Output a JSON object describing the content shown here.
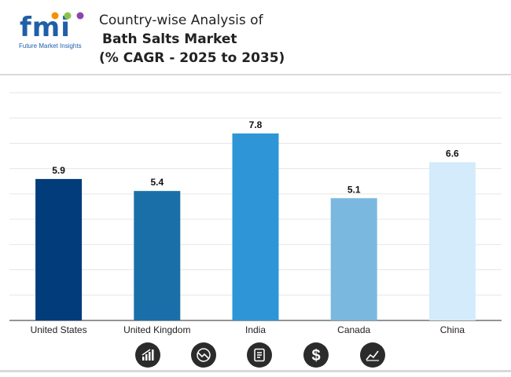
{
  "brand": {
    "logo_text": "fmi",
    "logo_subtext": "Future Market Insights",
    "colors": {
      "blue": "#1f5fa8",
      "orange": "#f39200",
      "green": "#8bc34a",
      "purple": "#8e44ad"
    }
  },
  "header": {
    "title_line1": "Country-wise Analysis of",
    "title_line2": "Bath Salts Market",
    "title_line3": "(% CAGR - 2025 to 2035)"
  },
  "footer": {
    "icons": [
      "growth-chart-icon",
      "decline-chart-icon",
      "report-document-icon",
      "dollar-icon",
      "trend-line-icon"
    ]
  },
  "chart_data": {
    "type": "bar",
    "title": "Country-wise Analysis of Bath Salts Market (% CAGR - 2025 to 2035)",
    "categories": [
      "United States",
      "United Kingdom",
      "India",
      "Canada",
      "China"
    ],
    "values": [
      5.9,
      5.4,
      7.8,
      5.1,
      6.6
    ],
    "value_labels": [
      "5.9",
      "5.4",
      "7.8",
      "5.1",
      "6.6"
    ],
    "colors": [
      "#023c7a",
      "#1a6fa8",
      "#2e96d6",
      "#7ab8e0",
      "#d3ebfb"
    ],
    "xlabel": "",
    "ylabel": "",
    "ylim": [
      0,
      9.5
    ],
    "grid": true
  }
}
